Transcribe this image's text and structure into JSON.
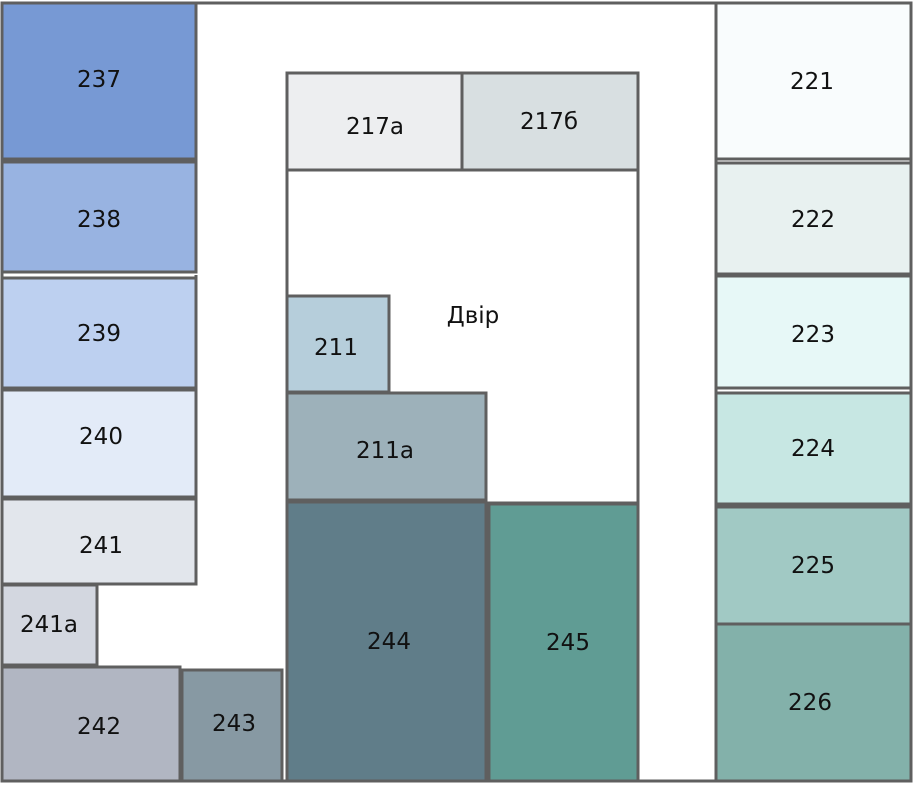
{
  "rooms": [
    {
      "id": "237",
      "color": "#7799d4"
    },
    {
      "id": "238",
      "color": "#98b3e1"
    },
    {
      "id": "239",
      "color": "#bdd0f0"
    },
    {
      "id": "240",
      "color": "#e3ebf8"
    },
    {
      "id": "241",
      "color": "#e2e6ec"
    },
    {
      "id": "241a",
      "label": "241а",
      "color": "#d3d7e0"
    },
    {
      "id": "242",
      "color": "#b1b6c2"
    },
    {
      "id": "243",
      "color": "#8799a3"
    },
    {
      "id": "217a",
      "label": "217а",
      "color": "#edeef0"
    },
    {
      "id": "217b",
      "label": "217б",
      "color": "#d8dfe1"
    },
    {
      "id": "211",
      "color": "#b6cedb"
    },
    {
      "id": "211a",
      "label": "211а",
      "color": "#9db1ba"
    },
    {
      "id": "244",
      "color": "#607d89"
    },
    {
      "id": "245",
      "color": "#609c94"
    },
    {
      "id": "221",
      "color": "#f9fcfd"
    },
    {
      "id": "222",
      "color": "#e8f1f0"
    },
    {
      "id": "223",
      "color": "#e7f8f7"
    },
    {
      "id": "224",
      "color": "#c7e7e3"
    },
    {
      "id": "225",
      "color": "#a1c9c4"
    },
    {
      "id": "226",
      "color": "#83b1aa"
    }
  ],
  "courtyard": {
    "label": "Двір"
  },
  "colors": {
    "outline": "#5f5f5f",
    "background": "#ffffff"
  }
}
